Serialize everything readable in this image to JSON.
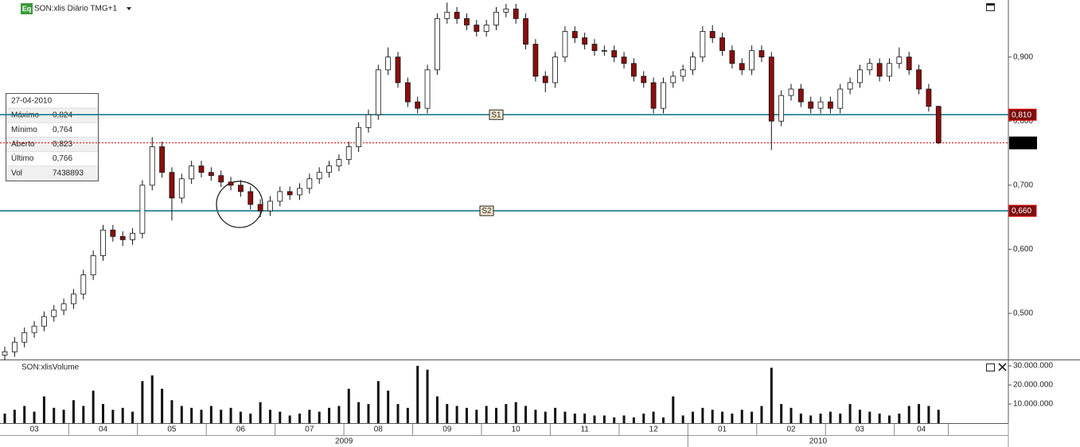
{
  "chart_data": {
    "type": "candlestick",
    "badge": "Eq",
    "title": "SON:xlis Diário TMG+1",
    "volume_title": "SON:xlisVolume",
    "x": [
      "03",
      "03",
      "03",
      "03",
      "03",
      "03",
      "03",
      "04",
      "04",
      "04",
      "04",
      "04",
      "04",
      "04",
      "05",
      "05",
      "05",
      "05",
      "05",
      "05",
      "05",
      "06",
      "06",
      "06",
      "06",
      "06",
      "06",
      "06",
      "07",
      "07",
      "07",
      "07",
      "07",
      "07",
      "07",
      "08",
      "08",
      "08",
      "08",
      "08",
      "08",
      "08",
      "09",
      "09",
      "09",
      "09",
      "09",
      "09",
      "09",
      "10",
      "10",
      "10",
      "10",
      "10",
      "10",
      "10",
      "11",
      "11",
      "11",
      "11",
      "11",
      "11",
      "11",
      "12",
      "12",
      "12",
      "12",
      "12",
      "12",
      "12",
      "01",
      "01",
      "01",
      "01",
      "01",
      "01",
      "01",
      "02",
      "02",
      "02",
      "02",
      "02",
      "02",
      "02",
      "03",
      "03",
      "03",
      "03",
      "03",
      "03",
      "03",
      "04",
      "04",
      "04",
      "04",
      "04"
    ],
    "years": [
      "2009",
      "2010"
    ],
    "open": [
      0.435,
      0.44,
      0.455,
      0.47,
      0.48,
      0.495,
      0.505,
      0.515,
      0.53,
      0.56,
      0.59,
      0.63,
      0.62,
      0.615,
      0.625,
      0.7,
      0.76,
      0.72,
      0.68,
      0.71,
      0.73,
      0.72,
      0.715,
      0.705,
      0.7,
      0.69,
      0.67,
      0.66,
      0.675,
      0.69,
      0.685,
      0.695,
      0.71,
      0.72,
      0.73,
      0.74,
      0.76,
      0.79,
      0.81,
      0.88,
      0.9,
      0.86,
      0.83,
      0.82,
      0.88,
      0.96,
      0.97,
      0.96,
      0.95,
      0.94,
      0.95,
      0.97,
      0.975,
      0.96,
      0.92,
      0.87,
      0.86,
      0.9,
      0.94,
      0.93,
      0.92,
      0.91,
      0.91,
      0.9,
      0.89,
      0.87,
      0.86,
      0.82,
      0.86,
      0.87,
      0.88,
      0.9,
      0.94,
      0.93,
      0.91,
      0.89,
      0.88,
      0.91,
      0.9,
      0.8,
      0.84,
      0.85,
      0.83,
      0.82,
      0.83,
      0.82,
      0.85,
      0.86,
      0.88,
      0.89,
      0.87,
      0.89,
      0.9,
      0.88,
      0.85,
      0.823
    ],
    "high": [
      0.448,
      0.463,
      0.478,
      0.488,
      0.503,
      0.513,
      0.523,
      0.538,
      0.568,
      0.598,
      0.638,
      0.638,
      0.628,
      0.633,
      0.708,
      0.775,
      0.768,
      0.728,
      0.718,
      0.738,
      0.738,
      0.728,
      0.723,
      0.713,
      0.708,
      0.698,
      0.678,
      0.683,
      0.698,
      0.698,
      0.703,
      0.718,
      0.728,
      0.738,
      0.748,
      0.768,
      0.798,
      0.818,
      0.888,
      0.915,
      0.908,
      0.868,
      0.838,
      0.888,
      0.968,
      0.985,
      0.978,
      0.968,
      0.958,
      0.958,
      0.978,
      0.983,
      0.983,
      0.968,
      0.928,
      0.878,
      0.908,
      0.948,
      0.948,
      0.938,
      0.928,
      0.918,
      0.918,
      0.908,
      0.898,
      0.878,
      0.868,
      0.868,
      0.878,
      0.888,
      0.908,
      0.948,
      0.95,
      0.938,
      0.918,
      0.898,
      0.918,
      0.918,
      0.908,
      0.848,
      0.858,
      0.858,
      0.838,
      0.838,
      0.838,
      0.858,
      0.868,
      0.888,
      0.898,
      0.898,
      0.898,
      0.915,
      0.908,
      0.888,
      0.858,
      0.824
    ],
    "low": [
      0.427,
      0.432,
      0.447,
      0.462,
      0.472,
      0.487,
      0.497,
      0.507,
      0.522,
      0.552,
      0.582,
      0.612,
      0.605,
      0.607,
      0.617,
      0.692,
      0.712,
      0.645,
      0.672,
      0.702,
      0.712,
      0.707,
      0.697,
      0.692,
      0.682,
      0.662,
      0.65,
      0.652,
      0.667,
      0.677,
      0.677,
      0.687,
      0.702,
      0.712,
      0.722,
      0.732,
      0.752,
      0.782,
      0.802,
      0.872,
      0.852,
      0.822,
      0.812,
      0.812,
      0.872,
      0.952,
      0.952,
      0.942,
      0.932,
      0.932,
      0.942,
      0.962,
      0.952,
      0.912,
      0.862,
      0.845,
      0.852,
      0.892,
      0.922,
      0.912,
      0.902,
      0.902,
      0.892,
      0.882,
      0.862,
      0.852,
      0.812,
      0.812,
      0.852,
      0.862,
      0.872,
      0.892,
      0.922,
      0.902,
      0.882,
      0.872,
      0.872,
      0.892,
      0.755,
      0.792,
      0.832,
      0.822,
      0.812,
      0.812,
      0.812,
      0.812,
      0.842,
      0.852,
      0.872,
      0.862,
      0.862,
      0.882,
      0.872,
      0.842,
      0.815,
      0.764
    ],
    "close": [
      0.44,
      0.455,
      0.47,
      0.48,
      0.495,
      0.505,
      0.515,
      0.53,
      0.56,
      0.59,
      0.63,
      0.62,
      0.615,
      0.625,
      0.7,
      0.76,
      0.72,
      0.68,
      0.71,
      0.73,
      0.72,
      0.715,
      0.705,
      0.7,
      0.69,
      0.67,
      0.66,
      0.675,
      0.69,
      0.685,
      0.695,
      0.71,
      0.72,
      0.73,
      0.74,
      0.76,
      0.79,
      0.81,
      0.88,
      0.9,
      0.86,
      0.83,
      0.82,
      0.88,
      0.96,
      0.97,
      0.96,
      0.95,
      0.94,
      0.95,
      0.97,
      0.975,
      0.96,
      0.92,
      0.87,
      0.86,
      0.9,
      0.94,
      0.93,
      0.92,
      0.91,
      0.91,
      0.9,
      0.89,
      0.87,
      0.86,
      0.82,
      0.86,
      0.87,
      0.88,
      0.9,
      0.94,
      0.93,
      0.91,
      0.89,
      0.88,
      0.91,
      0.9,
      0.8,
      0.84,
      0.85,
      0.83,
      0.82,
      0.83,
      0.82,
      0.85,
      0.86,
      0.88,
      0.89,
      0.87,
      0.89,
      0.9,
      0.88,
      0.85,
      0.823,
      0.766
    ],
    "volume": [
      5000000,
      7000000,
      9000000,
      6000000,
      14000000,
      8000000,
      7000000,
      12000000,
      9000000,
      17000000,
      10000000,
      7000000,
      8000000,
      6000000,
      22000000,
      25000000,
      18000000,
      12000000,
      9000000,
      8000000,
      7000000,
      9000000,
      7000000,
      8000000,
      6000000,
      5000000,
      11000000,
      7000000,
      6000000,
      4000000,
      5000000,
      7000000,
      6000000,
      8000000,
      9000000,
      18000000,
      11000000,
      10000000,
      22000000,
      17000000,
      10000000,
      8000000,
      30000000,
      28000000,
      14000000,
      10000000,
      9000000,
      8000000,
      7000000,
      9000000,
      8000000,
      10000000,
      11000000,
      9000000,
      7000000,
      6000000,
      8000000,
      6000000,
      5000000,
      5000000,
      4000000,
      4000000,
      3000000,
      4000000,
      3000000,
      5000000,
      6000000,
      3000000,
      14000000,
      4000000,
      6000000,
      8000000,
      7000000,
      6000000,
      5000000,
      7000000,
      6000000,
      9000000,
      29000000,
      10000000,
      8000000,
      5000000,
      4000000,
      5000000,
      6000000,
      5000000,
      10000000,
      7000000,
      6000000,
      5000000,
      4000000,
      5000000,
      9000000,
      10000000,
      9000000,
      7000000
    ],
    "up_color": "#ffffff",
    "down_color": "#8b0d0d",
    "ylim": [
      0.428,
      0.989
    ],
    "yticks": [
      {
        "value": 0.5,
        "label": "0,500"
      },
      {
        "value": 0.6,
        "label": "0,600"
      },
      {
        "value": 0.7,
        "label": "0,700"
      },
      {
        "value": 0.8,
        "label": "0,800"
      },
      {
        "value": 0.9,
        "label": "0,900"
      }
    ],
    "volume_ylim": [
      0,
      32900000
    ],
    "volume_yticks": [
      {
        "value": 10000000,
        "label": "10.000.000"
      },
      {
        "value": 20000000,
        "label": "20.000.000"
      },
      {
        "value": 30000000,
        "label": "30.000.000"
      }
    ],
    "levels": [
      {
        "name": "S1",
        "value": 0.81,
        "label": "0,810"
      },
      {
        "name": "S2",
        "value": 0.66,
        "label": "0,660"
      }
    ],
    "level_color": "#1a7a8a",
    "info_box": {
      "date": "27-04-2010",
      "rows": [
        [
          "Máximo",
          "0,824"
        ],
        [
          "Mínimo",
          "0,764"
        ],
        [
          "Aberto",
          "0,823"
        ],
        [
          "Último",
          "0,766"
        ],
        [
          "Vol",
          "7438893"
        ]
      ]
    }
  }
}
